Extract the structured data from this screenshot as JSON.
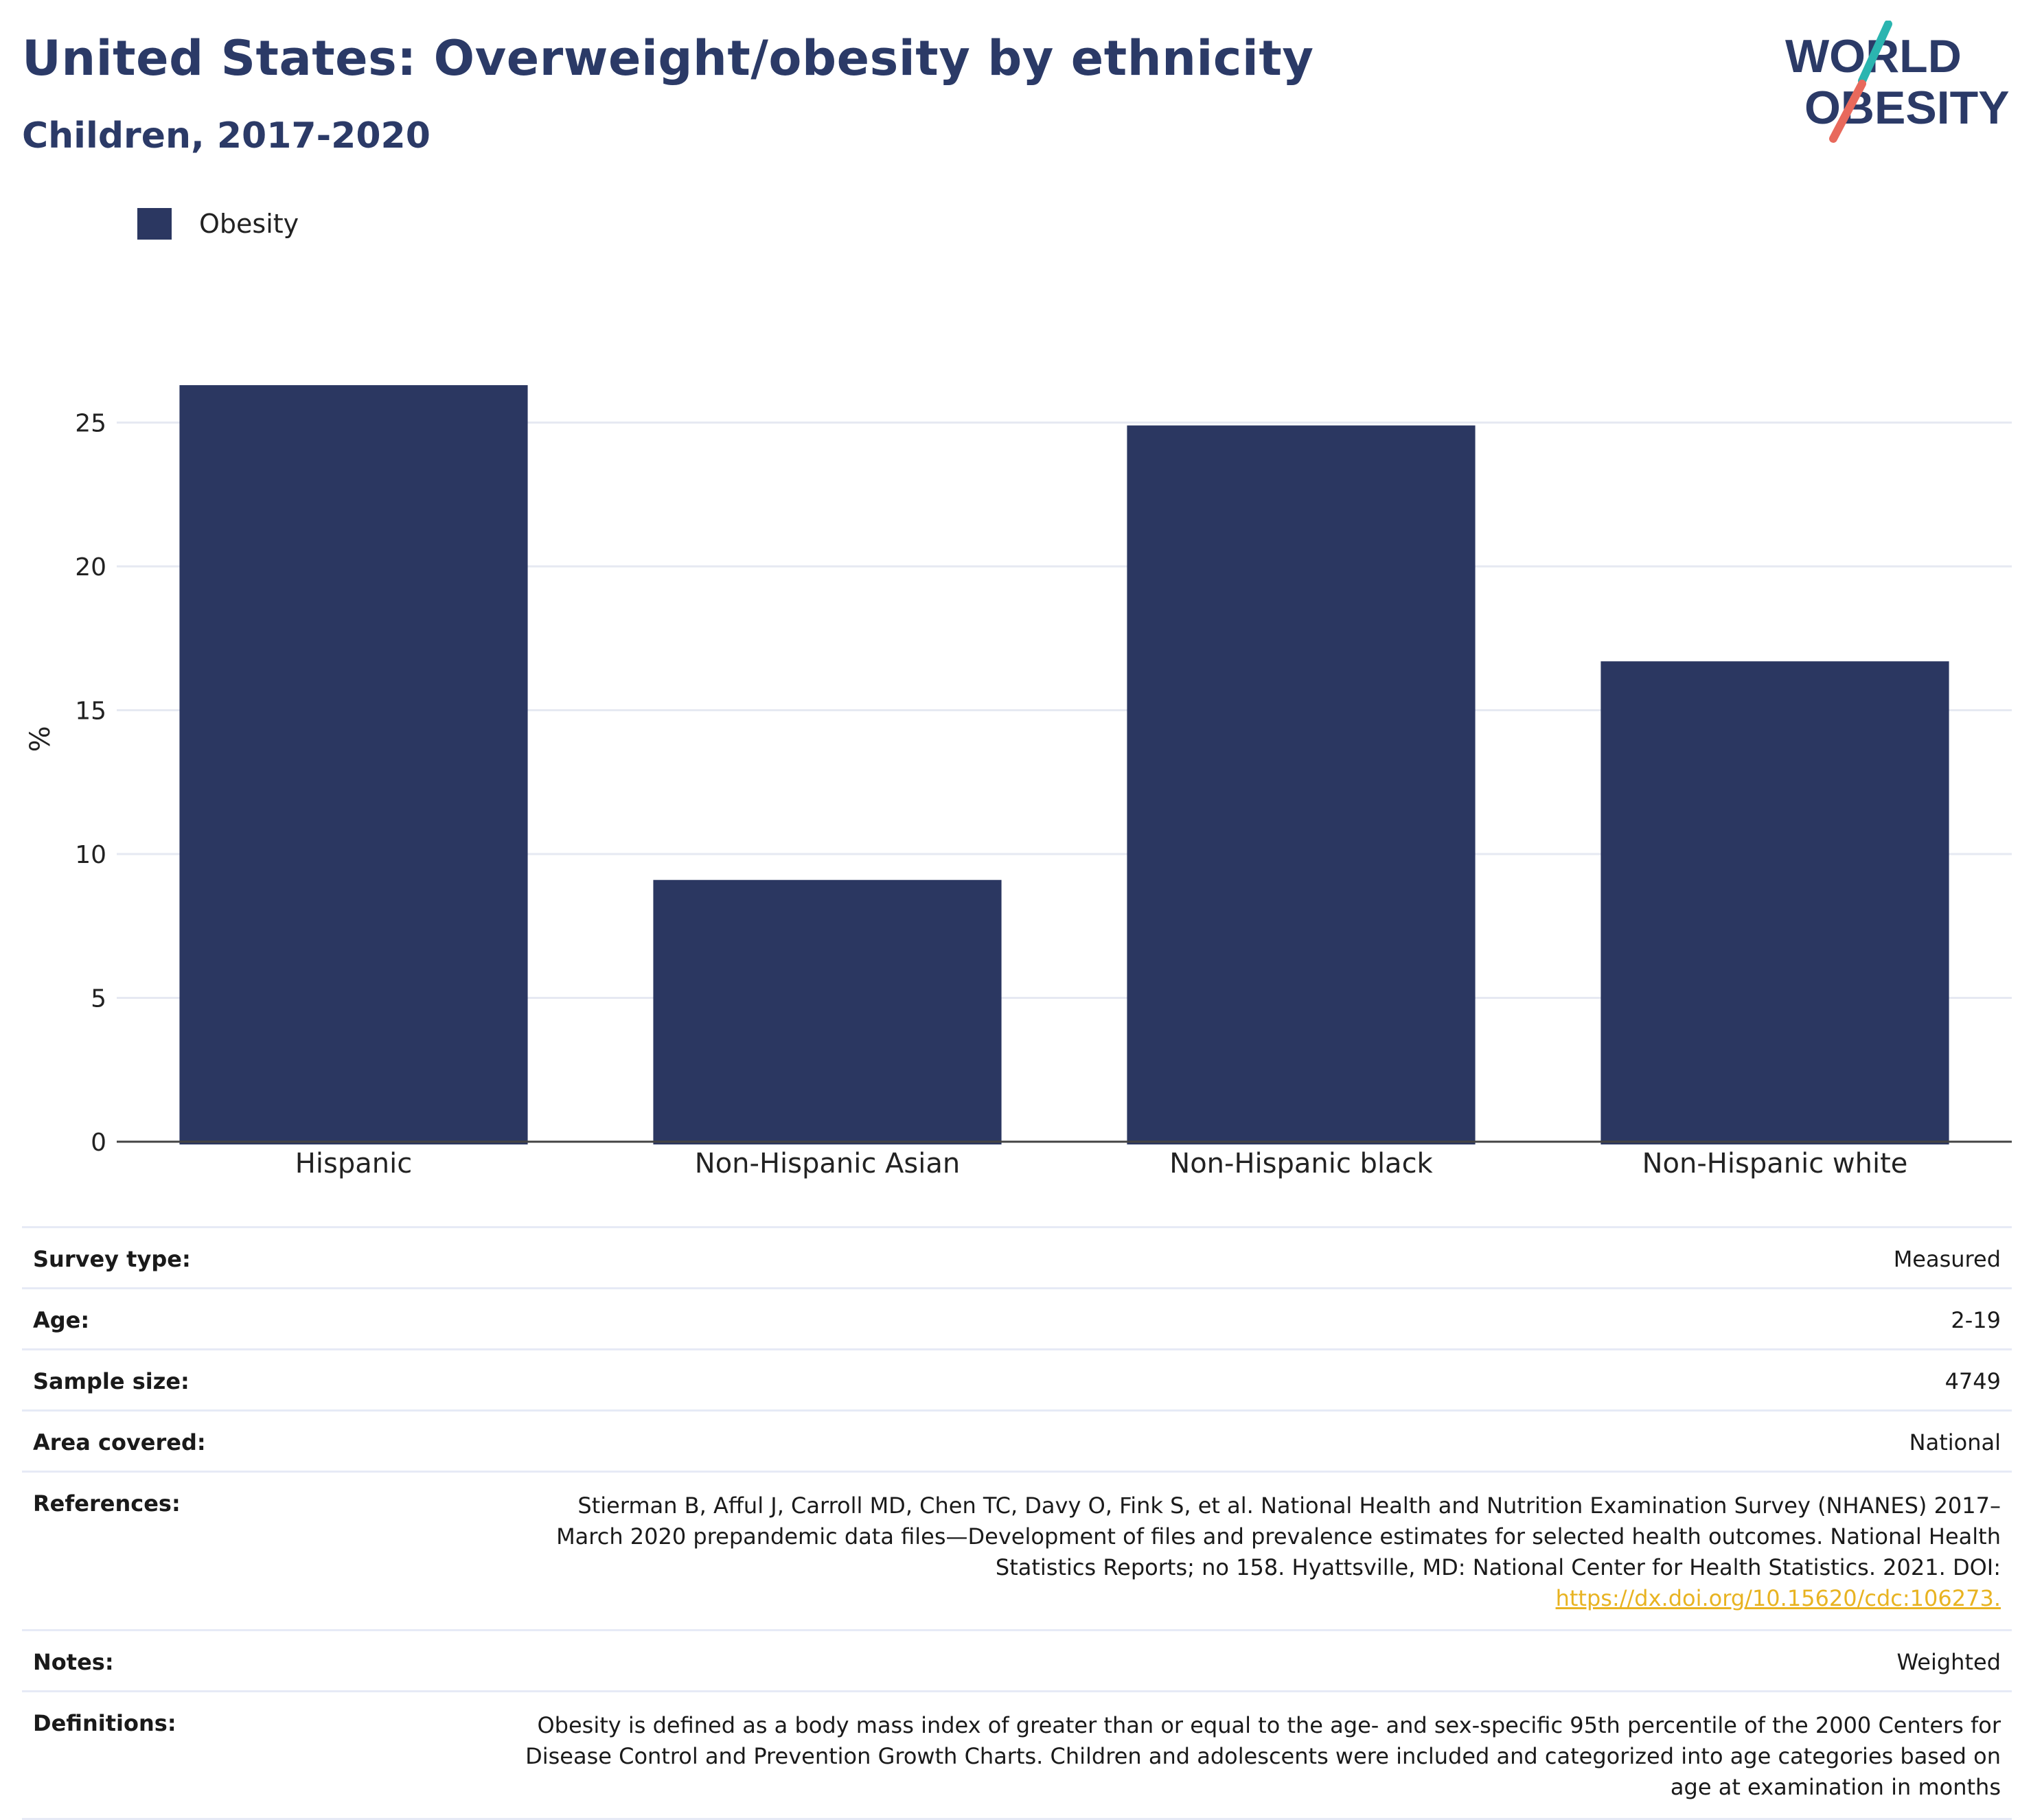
{
  "title": "United States: Overweight/obesity by ethnicity",
  "subtitle": "Children, 2017-2020",
  "logo": {
    "line1": "WORLD",
    "line2": "OBESITY"
  },
  "colors": {
    "bar": "#2b3761",
    "title": "#2b3a67",
    "grid": "#e6e9f2",
    "axis": "#444444",
    "link": "#e8b321",
    "logo_teal": "#2bb5b0",
    "logo_red": "#e8695c"
  },
  "chart_data": {
    "type": "bar",
    "title": "",
    "xlabel": "",
    "ylabel": "%",
    "categories": [
      "Hispanic",
      "Non-Hispanic Asian",
      "Non-Hispanic black",
      "Non-Hispanic white"
    ],
    "series": [
      {
        "name": "Obesity",
        "values": [
          26.3,
          9.1,
          24.9,
          16.7
        ]
      }
    ],
    "ylim": [
      0,
      28
    ],
    "yticks": [
      0,
      5,
      10,
      15,
      20,
      25
    ],
    "grid": true,
    "legend": "top-left"
  },
  "metadata": [
    {
      "key": "Survey type:",
      "value": "Measured"
    },
    {
      "key": "Age:",
      "value": "2-19"
    },
    {
      "key": "Sample size:",
      "value": "4749"
    },
    {
      "key": "Area covered:",
      "value": "National"
    },
    {
      "key": "References:",
      "value": "Stierman B, Afful J, Carroll MD, Chen TC, Davy O, Fink S, et al. National Health and Nutrition Examination Survey (NHANES) 2017–March 2020 prepandemic data files—Development of files and prevalence estimates for selected health outcomes. National Health Statistics Reports; no 158. Hyattsville, MD: National Center for Health Statistics. 2021. DOI:",
      "link": "https://dx.doi.org/10.15620/cdc:106273."
    },
    {
      "key": "Notes:",
      "value": "Weighted"
    },
    {
      "key": "Definitions:",
      "value": "Obesity is defined as a body mass index of greater than or equal to the age- and sex-specific 95th percentile of the 2000 Centers for Disease Control and Prevention Growth Charts. Children and adolescents were included and categorized into age categories based on age at examination in months"
    }
  ]
}
